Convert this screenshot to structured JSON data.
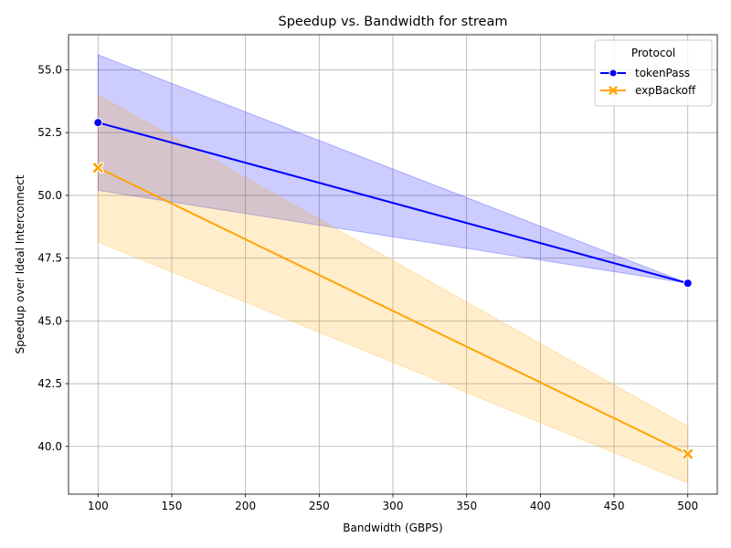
{
  "chart_data": {
    "type": "line",
    "title": "Speedup vs. Bandwidth for stream",
    "xlabel": "Bandwidth (GBPS)",
    "ylabel": "Speedup over Ideal Interconnect",
    "x": [
      100,
      500
    ],
    "xlim": [
      80,
      520
    ],
    "ylim": [
      38.1,
      56.4
    ],
    "xticks": [
      100,
      150,
      200,
      250,
      300,
      350,
      400,
      450,
      500
    ],
    "yticks": [
      40.0,
      42.5,
      45.0,
      47.5,
      50.0,
      52.5,
      55.0
    ],
    "grid": true,
    "legend": {
      "title": "Protocol",
      "placement": "top-right"
    },
    "series": [
      {
        "name": "tokenPass",
        "color": "#0000ff",
        "marker": "circle",
        "values": [
          52.9,
          46.5
        ],
        "ci_lower": [
          50.2,
          46.5
        ],
        "ci_upper": [
          55.6,
          46.5
        ]
      },
      {
        "name": "expBackoff",
        "color": "#ffa500",
        "marker": "x",
        "values": [
          51.1,
          39.7
        ],
        "ci_lower": [
          48.15,
          38.55
        ],
        "ci_upper": [
          54.0,
          40.8
        ]
      }
    ]
  }
}
